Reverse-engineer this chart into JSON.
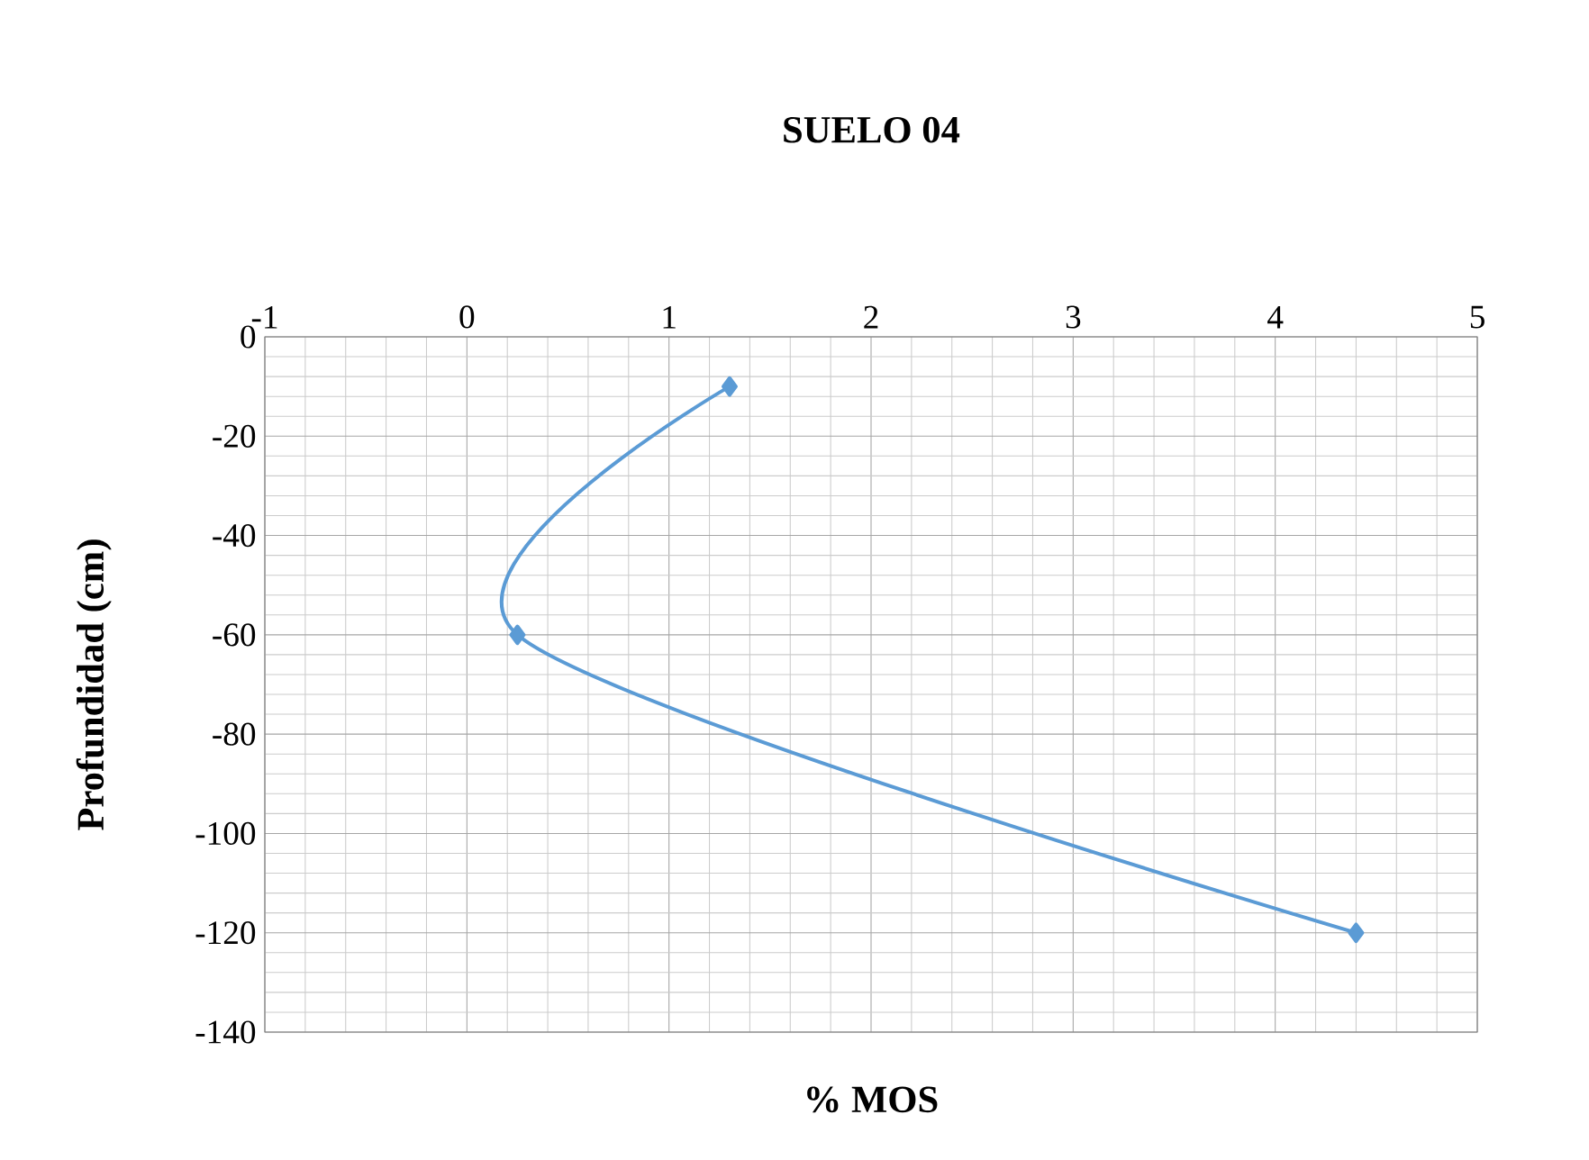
{
  "chart_data": {
    "type": "line",
    "title": "SUELO 04",
    "xlabel": "% MOS",
    "ylabel": "Profundidad (cm)",
    "x": [
      1.3,
      0.25,
      4.4
    ],
    "values": [
      -10,
      -60,
      -120
    ],
    "color": "#5b9bd5",
    "xlim": [
      -1,
      5
    ],
    "ylim": [
      -140,
      0
    ],
    "xticks": [
      -1,
      0,
      1,
      2,
      3,
      4,
      5
    ],
    "yticks": [
      -140,
      -120,
      -100,
      -80,
      -60,
      -40,
      -20,
      0
    ],
    "grid": true,
    "marker": "diamond"
  }
}
